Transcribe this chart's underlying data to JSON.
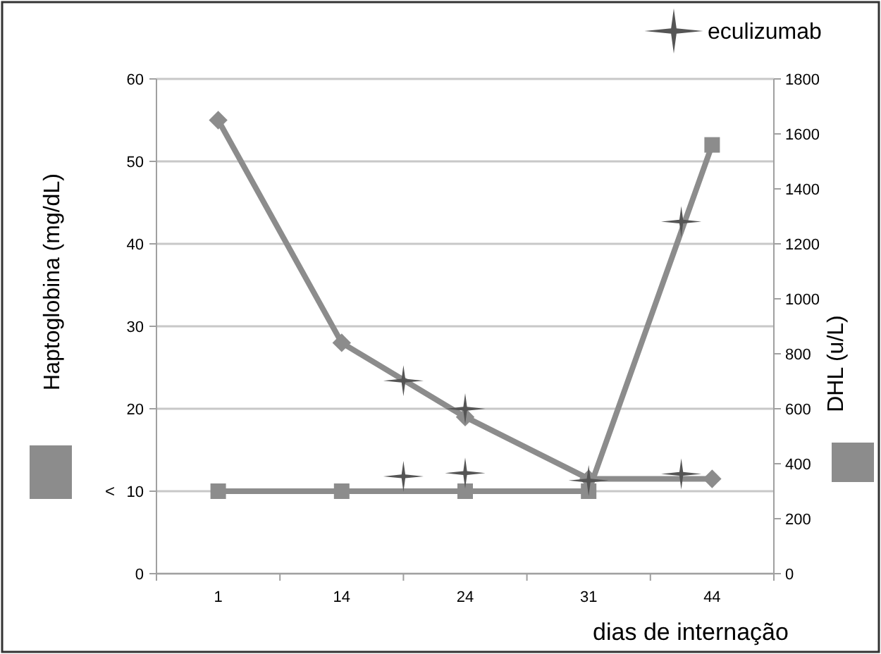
{
  "chart_data": {
    "type": "line",
    "xlabel": "dias de internação",
    "ylabel": "Haptoglobina (mg/dL)",
    "y2label": "DHL (u/L)",
    "categories": [
      "1",
      null,
      null,
      null,
      "14",
      null,
      null,
      null,
      "24",
      null,
      null,
      null,
      "31",
      null,
      null,
      null,
      "44"
    ],
    "ylim": [
      0,
      60
    ],
    "yticks": [
      0,
      10,
      20,
      30,
      40,
      50,
      60
    ],
    "y2lim": [
      0,
      1800
    ],
    "y2ticks": [
      0,
      200,
      400,
      600,
      800,
      1000,
      1200,
      1400,
      1600,
      1800
    ],
    "grid": "y",
    "legend": "top right",
    "line_style": "solid",
    "annotations": [
      "<"
    ],
    "series": [
      {
        "marker": "square",
        "color": "#8c8c8c",
        "values": [
          10,
          null,
          null,
          null,
          10,
          null,
          null,
          null,
          10,
          null,
          null,
          null,
          10,
          null,
          null,
          null,
          52
        ]
      },
      {
        "marker": "diamond",
        "color": "#8c8c8c",
        "values": [
          55,
          null,
          null,
          null,
          28,
          null,
          null,
          null,
          19,
          null,
          null,
          null,
          11.5,
          null,
          null,
          null,
          11.5
        ]
      },
      {
        "type": "scatter",
        "name": "eculizumab",
        "marker": "star",
        "color": "#555555",
        "values": [
          null,
          null,
          null,
          null,
          null,
          null,
          23.4,
          null,
          20,
          null,
          null,
          null,
          11.3,
          null,
          null,
          42.7,
          null
        ]
      },
      {
        "type": "scatter",
        "marker": "star",
        "color": "#555555",
        "values": [
          null,
          null,
          null,
          null,
          null,
          null,
          11.8,
          null,
          12.2,
          null,
          null,
          null,
          null,
          null,
          null,
          12.1,
          null
        ]
      }
    ]
  }
}
